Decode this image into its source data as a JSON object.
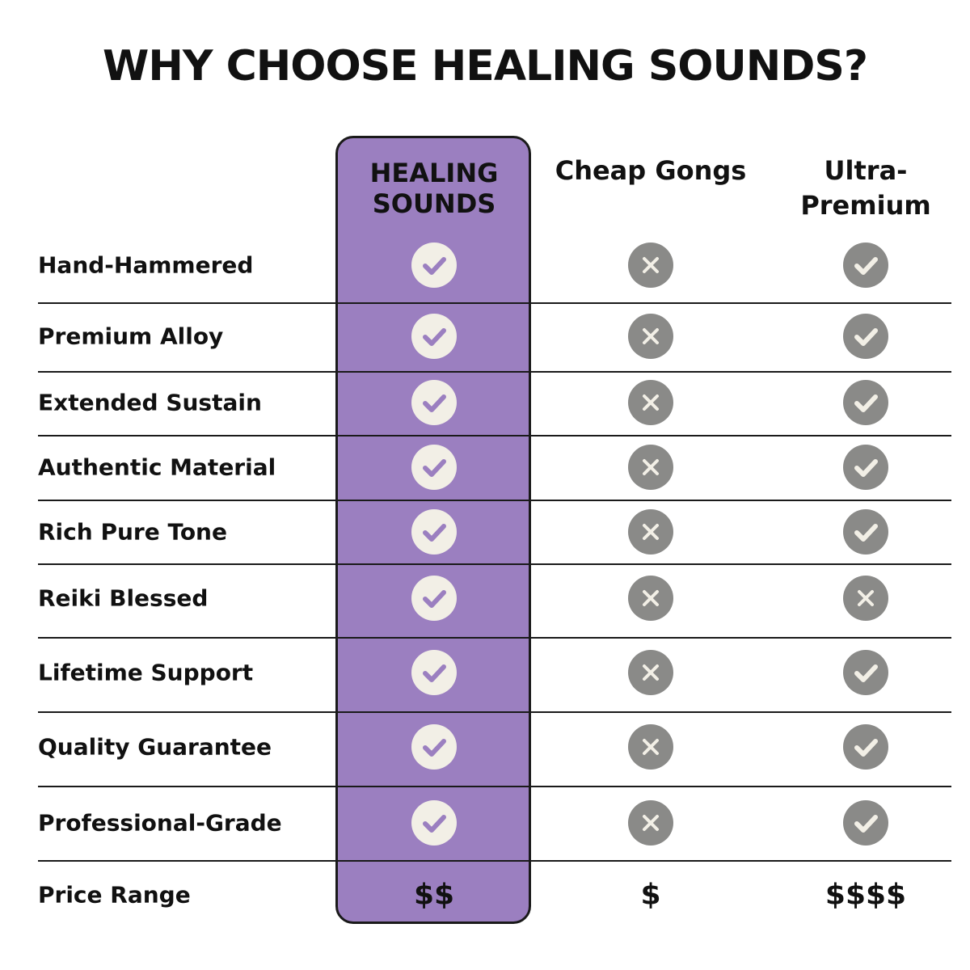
{
  "title": "WHY CHOOSE HEALING SOUNDS?",
  "colors": {
    "highlight": "#9b7fc0",
    "check_bg_highlight": "#f2efe6",
    "icon_gray": "#8a8a88",
    "icon_mark": "#f2efe6"
  },
  "columns": [
    {
      "label": "HEALING SOUNDS"
    },
    {
      "label": "Cheap Gongs"
    },
    {
      "label": "Ultra-Premium"
    }
  ],
  "rows": [
    {
      "feature": "Hand-Hammered",
      "values": [
        "check",
        "cross",
        "check"
      ]
    },
    {
      "feature": "Premium Alloy",
      "values": [
        "check",
        "cross",
        "check"
      ]
    },
    {
      "feature": "Extended Sustain",
      "values": [
        "check",
        "cross",
        "check"
      ]
    },
    {
      "feature": "Authentic Material",
      "values": [
        "check",
        "cross",
        "check"
      ]
    },
    {
      "feature": "Rich Pure Tone",
      "values": [
        "check",
        "cross",
        "check"
      ]
    },
    {
      "feature": "Reiki Blessed",
      "values": [
        "check",
        "cross",
        "cross"
      ]
    },
    {
      "feature": "Lifetime Support",
      "values": [
        "check",
        "cross",
        "check"
      ]
    },
    {
      "feature": "Quality Guarantee",
      "values": [
        "check",
        "cross",
        "check"
      ]
    },
    {
      "feature": "Professional-Grade",
      "values": [
        "check",
        "cross",
        "check"
      ]
    }
  ],
  "price_row": {
    "feature": "Price Range",
    "values": [
      "$$",
      "$",
      "$$$$"
    ]
  }
}
